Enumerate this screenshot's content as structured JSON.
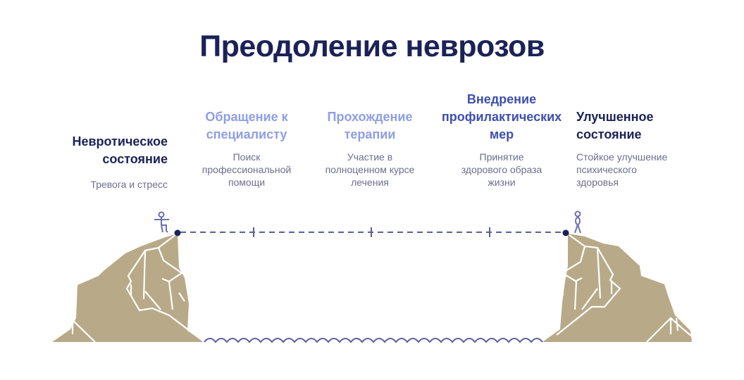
{
  "title": "Преодоление неврозов",
  "colors": {
    "title": "#1b2257",
    "rock": "#b8aa88",
    "rope": "#5a5f9a",
    "figure": "#6a70b0",
    "light_heading": "#8f9ee6",
    "mid_heading": "#3f4fae",
    "dark_heading": "#1b2257",
    "text": "#6b6f8e"
  },
  "steps": [
    {
      "heading": [
        "Невротическое",
        "состояние"
      ],
      "description": [
        "Тревога и стресс"
      ]
    },
    {
      "heading": [
        "Обращение к",
        "специалисту"
      ],
      "description": [
        "Поиск",
        "профессиональной",
        "помощи"
      ]
    },
    {
      "heading": [
        "Прохождение",
        "терапии"
      ],
      "description": [
        "Участие в",
        "полноценном курсе",
        "лечения"
      ]
    },
    {
      "heading": [
        "Внедрение",
        "профилактических",
        "мер"
      ],
      "description": [
        "Принятие",
        "здорового образа",
        "жизни"
      ]
    },
    {
      "heading": [
        "Улучшенное",
        "состояние"
      ],
      "description": [
        "Стойкое улучшение",
        "психического",
        "здоровья"
      ]
    }
  ],
  "icons": [
    "person-balancing-icon",
    "person-standing-icon",
    "cliff-left",
    "cliff-right",
    "water-waves",
    "rope"
  ]
}
